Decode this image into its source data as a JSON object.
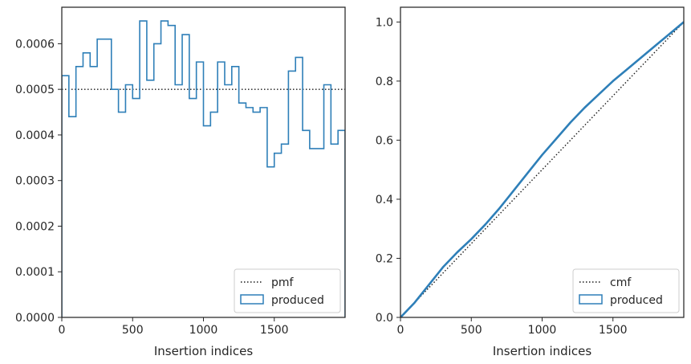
{
  "colors": {
    "produced": "#2e7fb8",
    "reference": "#1a1a1a",
    "axes": "#262626",
    "legend_frame": "#cccccc"
  },
  "chart_data": [
    {
      "type": "step",
      "xlabel": "Insertion indices",
      "ylabel": "",
      "xlim": [
        0,
        2000
      ],
      "ylim": [
        0,
        0.00068
      ],
      "xticks": [
        0,
        500,
        1000,
        1500
      ],
      "xtick_labels": [
        "0",
        "500",
        "1000",
        "1500"
      ],
      "yticks": [
        0,
        0.0001,
        0.0002,
        0.0003,
        0.0004,
        0.0005,
        0.0006
      ],
      "ytick_labels": [
        "0.0000",
        "0.0001",
        "0.0002",
        "0.0003",
        "0.0004",
        "0.0005",
        "0.0006"
      ],
      "legend_position": "lower-right",
      "series": [
        {
          "name": "pmf",
          "style": "dotted",
          "x": [
            0,
            2000
          ],
          "y": [
            0.0005,
            0.0005
          ]
        },
        {
          "name": "produced",
          "style": "step-histogram",
          "bin_edges": [
            0,
            50,
            100,
            150,
            200,
            250,
            300,
            350,
            400,
            450,
            500,
            550,
            600,
            650,
            700,
            750,
            800,
            850,
            900,
            950,
            1000,
            1050,
            1100,
            1150,
            1200,
            1250,
            1300,
            1350,
            1400,
            1450,
            1500,
            1550,
            1600,
            1650,
            1700,
            1750,
            1800,
            1850,
            1900,
            1950,
            2000
          ],
          "values": [
            0.00053,
            0.00044,
            0.00055,
            0.00058,
            0.00055,
            0.00061,
            0.00061,
            0.0005,
            0.00045,
            0.00051,
            0.00048,
            0.00065,
            0.00052,
            0.0006,
            0.00065,
            0.00064,
            0.00051,
            0.00062,
            0.00048,
            0.00056,
            0.00042,
            0.00045,
            0.00056,
            0.00051,
            0.00055,
            0.00047,
            0.00046,
            0.00045,
            0.00046,
            0.00033,
            0.00036,
            0.00038,
            0.00054,
            0.00057,
            0.00041,
            0.00037,
            0.00037,
            0.00051,
            0.00038,
            0.00041
          ]
        }
      ]
    },
    {
      "type": "line",
      "xlabel": "Insertion indices",
      "ylabel": "",
      "xlim": [
        0,
        2000
      ],
      "ylim": [
        0,
        1.05
      ],
      "xticks": [
        0,
        500,
        1000,
        1500
      ],
      "xtick_labels": [
        "0",
        "500",
        "1000",
        "1500"
      ],
      "yticks": [
        0,
        0.2,
        0.4,
        0.6,
        0.8,
        1.0
      ],
      "ytick_labels": [
        "0.0",
        "0.2",
        "0.4",
        "0.6",
        "0.8",
        "1.0"
      ],
      "legend_position": "lower-right",
      "series": [
        {
          "name": "cmf",
          "style": "dotted",
          "x": [
            0,
            2000
          ],
          "y": [
            0,
            1
          ]
        },
        {
          "name": "produced",
          "style": "line",
          "x": [
            0,
            100,
            200,
            300,
            400,
            500,
            600,
            700,
            800,
            900,
            1000,
            1100,
            1200,
            1300,
            1400,
            1500,
            1600,
            1700,
            1800,
            1900,
            2000
          ],
          "y": [
            0,
            0.05,
            0.11,
            0.17,
            0.22,
            0.265,
            0.315,
            0.37,
            0.43,
            0.49,
            0.55,
            0.605,
            0.66,
            0.71,
            0.755,
            0.8,
            0.84,
            0.88,
            0.92,
            0.96,
            1.0
          ]
        }
      ]
    }
  ]
}
